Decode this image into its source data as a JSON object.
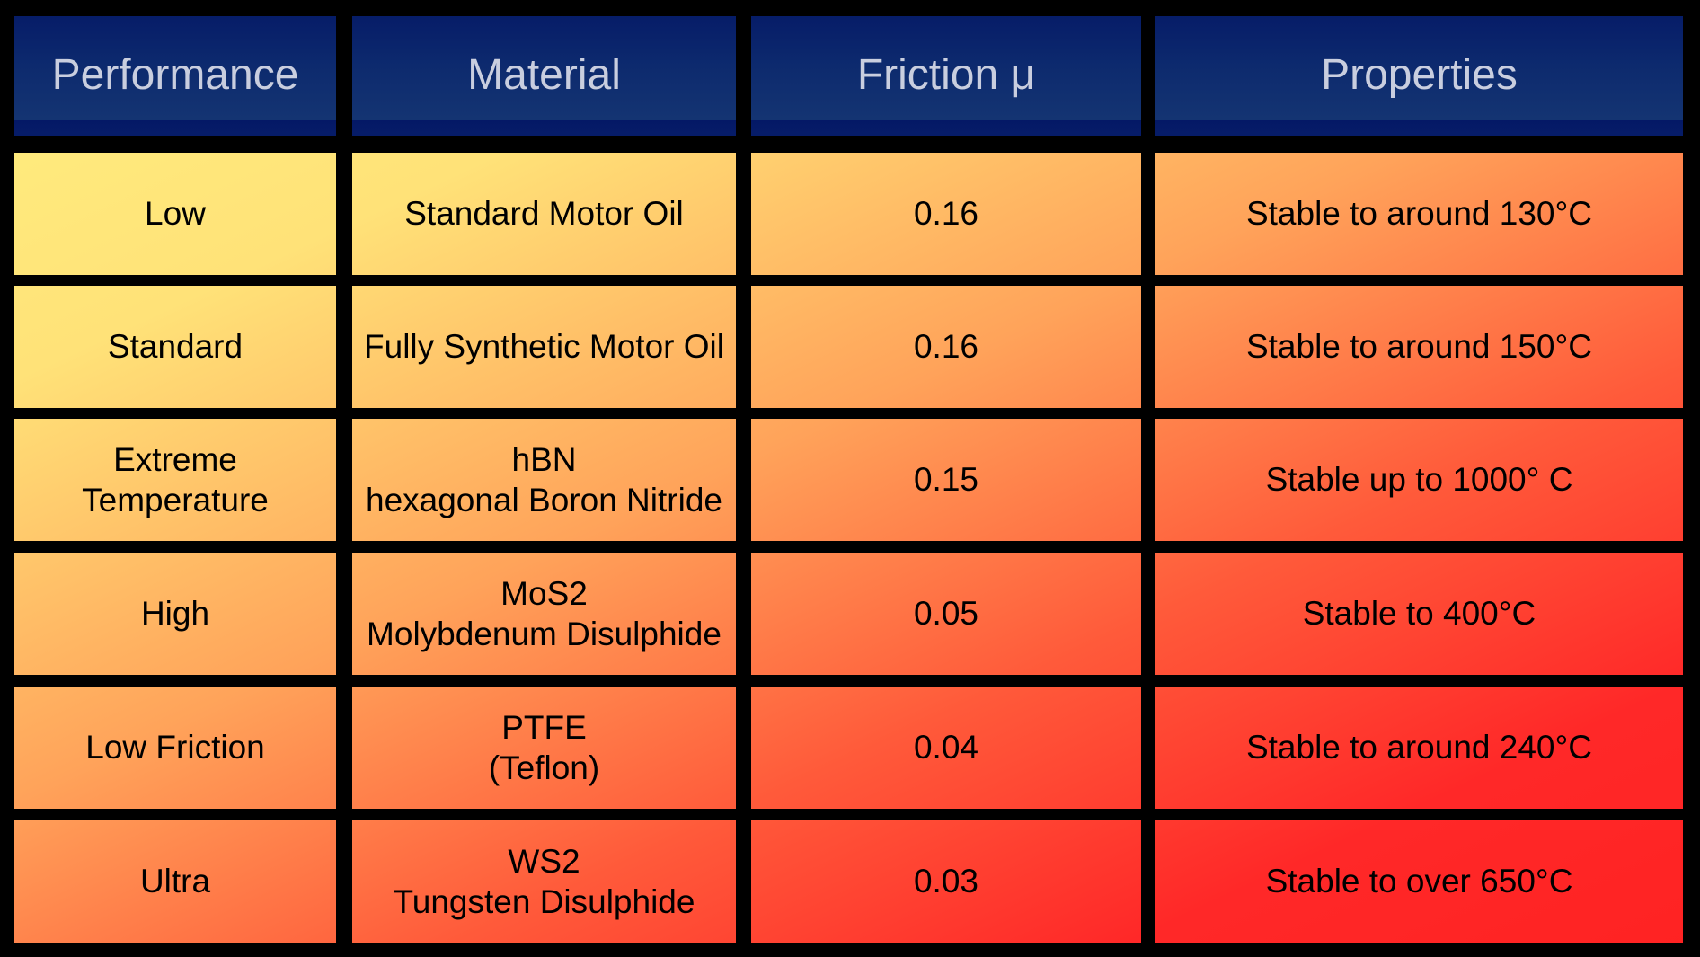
{
  "chart_data": {
    "type": "table",
    "columns": [
      "Performance",
      "Material",
      "Friction μ",
      "Properties"
    ],
    "rows": [
      {
        "performance": [
          "Low"
        ],
        "material": [
          "Standard Motor Oil"
        ],
        "friction": "0.16",
        "properties": "Stable to around 130°C"
      },
      {
        "performance": [
          "Standard"
        ],
        "material": [
          "Fully Synthetic Motor Oil"
        ],
        "friction": "0.16",
        "properties": "Stable to around 150°C"
      },
      {
        "performance": [
          "Extreme",
          "Temperature"
        ],
        "material": [
          "hBN",
          "hexagonal Boron Nitride"
        ],
        "friction": "0.15",
        "properties": "Stable up to 1000° C"
      },
      {
        "performance": [
          "High"
        ],
        "material": [
          "MoS2",
          "Molybdenum Disulphide"
        ],
        "friction": "0.05",
        "properties": "Stable to 400°C"
      },
      {
        "performance": [
          "Low Friction"
        ],
        "material": [
          "PTFE",
          "(Teflon)"
        ],
        "friction": "0.04",
        "properties": "Stable to around 240°C"
      },
      {
        "performance": [
          "Ultra"
        ],
        "material": [
          "WS2",
          "Tungsten Disulphide"
        ],
        "friction": "0.03",
        "properties": "Stable to over 650°C"
      }
    ],
    "colors": {
      "header_background": "#041866",
      "header_text": "#c9cedf",
      "gradient_start": "#fff080",
      "gradient_end": "#ff2222",
      "grid": "#000000"
    }
  }
}
